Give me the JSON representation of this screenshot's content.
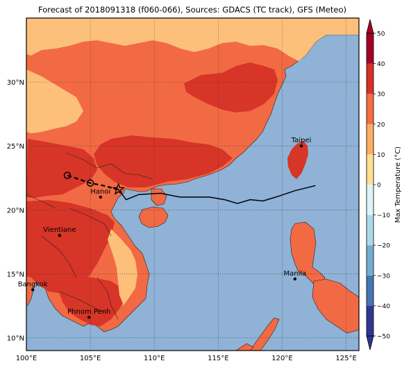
{
  "title": "Forecast of 2018091318 (f060-066), Sources: GDACS (TC track), GFS (Meteo)",
  "map": {
    "lon_range": [
      100,
      126
    ],
    "lat_range": [
      9,
      35
    ],
    "lon_ticks": [
      {
        "value": 100,
        "label": "100°E"
      },
      {
        "value": 105,
        "label": "105°E"
      },
      {
        "value": 110,
        "label": "110°E"
      },
      {
        "value": 115,
        "label": "115°E"
      },
      {
        "value": 120,
        "label": "120°E"
      },
      {
        "value": 125,
        "label": "125°E"
      }
    ],
    "lat_ticks": [
      {
        "value": 10,
        "label": "10°N"
      },
      {
        "value": 15,
        "label": "15°N"
      },
      {
        "value": 20,
        "label": "20°N"
      },
      {
        "value": 25,
        "label": "25°N"
      },
      {
        "value": 30,
        "label": "30°N"
      }
    ],
    "grid": true,
    "grid_style": "dotted",
    "cities": [
      {
        "name": "Taipei",
        "lon": 121.5,
        "lat": 25.0
      },
      {
        "name": "Hanoi",
        "lon": 105.8,
        "lat": 21.0
      },
      {
        "name": "Vientiane",
        "lon": 102.6,
        "lat": 18.0
      },
      {
        "name": "Manila",
        "lon": 121.0,
        "lat": 14.6
      },
      {
        "name": "Bangkok",
        "lon": 100.5,
        "lat": 13.75
      },
      {
        "name": "Phnom Penh",
        "lon": 104.9,
        "lat": 11.6
      }
    ],
    "track": {
      "observed": [
        [
          122.6,
          21.9
        ],
        [
          121.0,
          21.5
        ],
        [
          119.5,
          21.0
        ],
        [
          118.5,
          20.7
        ],
        [
          117.5,
          20.8
        ],
        [
          116.5,
          20.5
        ],
        [
          115.5,
          20.8
        ],
        [
          114.3,
          21.0
        ],
        [
          112.0,
          21.0
        ],
        [
          110.5,
          21.3
        ],
        [
          108.8,
          21.2
        ],
        [
          107.8,
          20.8
        ],
        [
          107.2,
          21.6
        ]
      ],
      "forecast": [
        [
          107.2,
          21.6
        ],
        [
          106.0,
          21.9
        ],
        [
          105.0,
          22.1
        ],
        [
          103.2,
          22.7
        ]
      ],
      "circle_points": [
        [
          105.0,
          22.1
        ],
        [
          103.2,
          22.7
        ]
      ],
      "current": [
        107.2,
        21.6
      ]
    }
  },
  "colorbar": {
    "label": "Max Temperature (°C)",
    "min": -50,
    "max": 50,
    "ticks": [
      "50",
      "40",
      "30",
      "20",
      "10",
      "0",
      "−10",
      "−20",
      "−30",
      "−40",
      "−50"
    ],
    "colors": [
      "#313695",
      "#4575b4",
      "#74add1",
      "#abd9e9",
      "#e0f3f8",
      "#fee090",
      "#fdae61",
      "#f46d43",
      "#d73027",
      "#a50026"
    ],
    "extends": "both"
  },
  "style": {
    "ocean": "#8fb2d6",
    "land_cool": "#fdc07a",
    "land_warm": "#f26a43",
    "land_hot": "#d73527",
    "border": "#222222",
    "track": "#000000"
  }
}
